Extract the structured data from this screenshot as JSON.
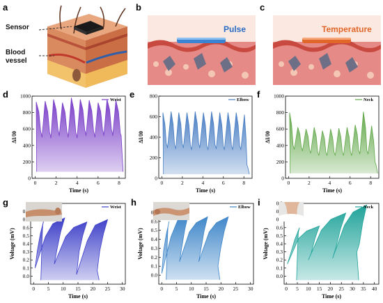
{
  "figure": {
    "panels": {
      "a": "a",
      "b": "b",
      "c": "c",
      "d": "d",
      "e": "e",
      "f": "f",
      "g": "g",
      "h": "h",
      "i": "i"
    },
    "panel_a": {
      "sensor_label": "Sensor",
      "vessel_label_1": "Blood",
      "vessel_label_2": "vessel"
    },
    "panel_b": {
      "label": "Pulse",
      "label_color": "#2b6cc4"
    },
    "panel_c": {
      "label": "Temperature",
      "label_color": "#e0662a"
    }
  },
  "chart_data": [
    {
      "panel": "d",
      "type": "area",
      "legend": "Wrist",
      "color": "#7a3fc8",
      "xlabel": "Time (s)",
      "ylabel": "ΔI/I0",
      "xlim": [
        -0.3,
        8.6
      ],
      "ylim": [
        0,
        1000
      ],
      "xticks": [
        0,
        2,
        4,
        6,
        8
      ],
      "yticks": [
        0,
        200,
        400,
        600,
        800,
        1000
      ],
      "peaks": [
        [
          0.1,
          930
        ],
        [
          0.95,
          940
        ],
        [
          1.75,
          960
        ],
        [
          2.6,
          920
        ],
        [
          3.45,
          980
        ],
        [
          4.3,
          960
        ],
        [
          5.15,
          950
        ],
        [
          6.0,
          920
        ],
        [
          6.85,
          960
        ],
        [
          7.7,
          950
        ]
      ],
      "baseline": [
        [
          0.6,
          540
        ],
        [
          1.45,
          530
        ],
        [
          2.25,
          560
        ],
        [
          3.1,
          540
        ],
        [
          3.95,
          530
        ],
        [
          4.8,
          560
        ],
        [
          5.65,
          540
        ],
        [
          6.5,
          560
        ],
        [
          7.35,
          560
        ],
        [
          8.2,
          520
        ]
      ],
      "valley": 80
    },
    {
      "panel": "e",
      "type": "area",
      "legend": "Elbow",
      "color": "#4a7fc4",
      "xlabel": "Time (s)",
      "ylabel": "ΔI/I0",
      "xlim": [
        -0.3,
        8.8
      ],
      "ylim": [
        0,
        800
      ],
      "xticks": [
        0,
        2,
        4,
        6,
        8
      ],
      "yticks": [
        0,
        200,
        400,
        600,
        800
      ],
      "peaks": [
        [
          0.1,
          640
        ],
        [
          0.9,
          650
        ],
        [
          1.65,
          640
        ],
        [
          2.45,
          640
        ],
        [
          3.25,
          650
        ],
        [
          4.05,
          640
        ],
        [
          4.85,
          650
        ],
        [
          5.65,
          640
        ],
        [
          6.45,
          640
        ],
        [
          7.25,
          640
        ],
        [
          8.05,
          620
        ]
      ],
      "baseline": [
        [
          0.5,
          320
        ],
        [
          1.3,
          310
        ],
        [
          2.05,
          320
        ],
        [
          2.85,
          300
        ],
        [
          3.65,
          320
        ],
        [
          4.45,
          300
        ],
        [
          5.25,
          310
        ],
        [
          6.05,
          300
        ],
        [
          6.85,
          300
        ],
        [
          7.65,
          300
        ],
        [
          8.35,
          120
        ]
      ],
      "valley": 40
    },
    {
      "panel": "f",
      "type": "area",
      "legend": "Neck",
      "color": "#62a84a",
      "xlabel": "Time (s)",
      "ylabel": "ΔI/I0",
      "xlim": [
        -0.3,
        8.8
      ],
      "ylim": [
        0,
        1000
      ],
      "xticks": [
        0,
        2,
        4,
        6,
        8
      ],
      "yticks": [
        0,
        200,
        400,
        600,
        800,
        1000
      ],
      "peaks": [
        [
          0.1,
          800
        ],
        [
          0.9,
          620
        ],
        [
          1.7,
          600
        ],
        [
          2.5,
          620
        ],
        [
          3.3,
          580
        ],
        [
          4.1,
          600
        ],
        [
          4.9,
          610
        ],
        [
          5.7,
          620
        ],
        [
          6.5,
          650
        ],
        [
          7.3,
          810
        ],
        [
          8.1,
          640
        ]
      ],
      "baseline": [
        [
          0.5,
          380
        ],
        [
          1.3,
          360
        ],
        [
          2.1,
          330
        ],
        [
          2.9,
          300
        ],
        [
          3.7,
          300
        ],
        [
          4.5,
          300
        ],
        [
          5.3,
          300
        ],
        [
          6.1,
          300
        ],
        [
          6.9,
          320
        ],
        [
          7.7,
          320
        ],
        [
          8.5,
          180
        ]
      ],
      "valley": 60
    },
    {
      "panel": "g",
      "type": "area",
      "legend": "Wrist",
      "color": "#3d3fc8",
      "xlabel": "Time (s)",
      "ylabel": "Voltage (mV)",
      "xlim": [
        -1,
        31
      ],
      "ylim": [
        -0.1,
        0.9
      ],
      "xticks": [
        0,
        5,
        10,
        15,
        20,
        25,
        30
      ],
      "yticks": [
        0.0,
        0.1,
        0.2,
        0.3,
        0.4,
        0.5,
        0.6,
        0.7,
        0.8
      ],
      "peaks": [
        [
          3.5,
          0.7
        ],
        [
          10.5,
          0.72
        ],
        [
          18.0,
          0.67
        ],
        [
          25.0,
          0.7
        ]
      ],
      "baseline": [
        [
          0.5,
          0.1
        ],
        [
          7.0,
          0.15
        ],
        [
          14.5,
          0.02
        ],
        [
          21.5,
          0.07
        ],
        [
          29.5,
          0.02
        ]
      ],
      "valley": -0.05
    },
    {
      "panel": "h",
      "type": "area",
      "legend": "Elbow",
      "color": "#3b84c8",
      "xlabel": "Time (s)",
      "ylabel": "Voltage (mV)",
      "xlim": [
        -1,
        31
      ],
      "ylim": [
        -0.1,
        0.8
      ],
      "xticks": [
        0,
        5,
        10,
        15,
        20,
        25,
        30
      ],
      "yticks": [
        0.0,
        0.1,
        0.2,
        0.3,
        0.4,
        0.5,
        0.6,
        0.7
      ],
      "peaks": [
        [
          2.5,
          0.6
        ],
        [
          9.0,
          0.68
        ],
        [
          15.5,
          0.65
        ],
        [
          22.5,
          0.65
        ]
      ],
      "baseline": [
        [
          0.0,
          0.02
        ],
        [
          6.0,
          0.15
        ],
        [
          12.5,
          0.15
        ],
        [
          19.0,
          0.1
        ],
        [
          27.5,
          0.0
        ]
      ],
      "valley": -0.05
    },
    {
      "panel": "i",
      "type": "area",
      "legend": "Neck",
      "color": "#1fa39a",
      "xlabel": "Time (s)",
      "ylabel": "Voltage (mV)",
      "xlim": [
        -1,
        42
      ],
      "ylim": [
        -0.1,
        0.9
      ],
      "xticks": [
        0,
        5,
        10,
        15,
        20,
        25,
        30,
        35,
        40
      ],
      "yticks": [
        0.0,
        0.1,
        0.2,
        0.3,
        0.4,
        0.5,
        0.6,
        0.7,
        0.8,
        0.9
      ],
      "peaks": [
        [
          6.0,
          0.6
        ],
        [
          15.0,
          0.62
        ],
        [
          27.0,
          0.78
        ],
        [
          36.5,
          0.88
        ]
      ],
      "baseline": [
        [
          0.5,
          0.15
        ],
        [
          10.0,
          0.2
        ],
        [
          21.0,
          0.22
        ],
        [
          32.0,
          0.3
        ],
        [
          37.5,
          0.1
        ]
      ],
      "valley": -0.05
    }
  ]
}
